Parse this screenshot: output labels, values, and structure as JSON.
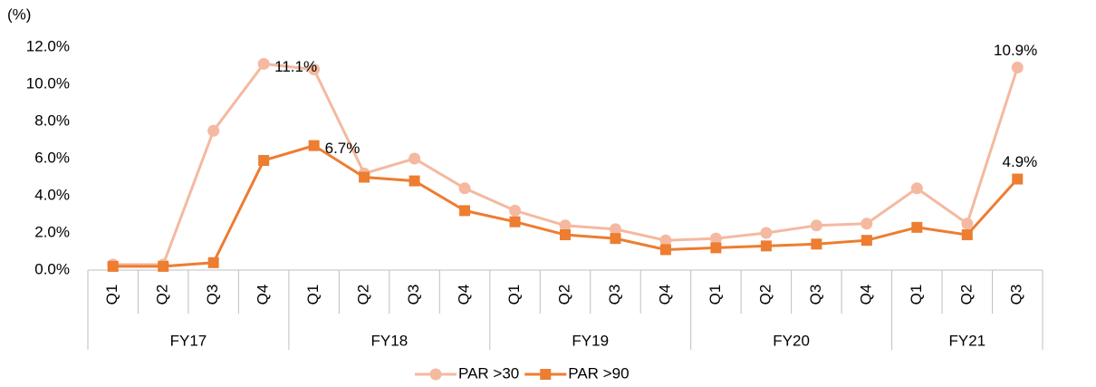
{
  "chart_data": {
    "type": "line",
    "y_label": "(%)",
    "category_groups": [
      {
        "name": "FY17",
        "categories": [
          "Q1",
          "Q2",
          "Q3",
          "Q4"
        ]
      },
      {
        "name": "FY18",
        "categories": [
          "Q1",
          "Q2",
          "Q3",
          "Q4"
        ]
      },
      {
        "name": "FY19",
        "categories": [
          "Q1",
          "Q2",
          "Q3",
          "Q4"
        ]
      },
      {
        "name": "FY20",
        "categories": [
          "Q1",
          "Q2",
          "Q3",
          "Q4"
        ]
      },
      {
        "name": "FY21",
        "categories": [
          "Q1",
          "Q2",
          "Q3"
        ]
      }
    ],
    "series": [
      {
        "name": "PAR >30",
        "color": "#f4b9a0",
        "marker": "circle",
        "values": [
          0.3,
          0.3,
          7.5,
          11.1,
          10.8,
          5.2,
          6.0,
          4.4,
          3.2,
          2.4,
          2.2,
          1.6,
          1.7,
          2.0,
          2.4,
          2.5,
          4.4,
          2.5,
          10.9
        ],
        "value_labels": [
          null,
          null,
          null,
          "11.1%",
          null,
          null,
          null,
          null,
          null,
          null,
          null,
          null,
          null,
          null,
          null,
          null,
          null,
          null,
          "10.9%"
        ]
      },
      {
        "name": "PAR >90",
        "color": "#ed7d31",
        "marker": "square",
        "values": [
          0.2,
          0.2,
          0.4,
          5.9,
          6.7,
          5.0,
          4.8,
          3.2,
          2.6,
          1.9,
          1.7,
          1.1,
          1.2,
          1.3,
          1.4,
          1.6,
          2.3,
          1.9,
          4.9
        ],
        "value_labels": [
          null,
          null,
          null,
          null,
          "6.7%",
          null,
          null,
          null,
          null,
          null,
          null,
          null,
          null,
          null,
          null,
          null,
          null,
          null,
          "4.9%"
        ]
      }
    ],
    "ylim": [
      0,
      12
    ],
    "yticks": [
      {
        "value": 0,
        "label": "0.0%"
      },
      {
        "value": 2,
        "label": "2.0%"
      },
      {
        "value": 4,
        "label": "4.0%"
      },
      {
        "value": 6,
        "label": "6.0%"
      },
      {
        "value": 8,
        "label": "8.0%"
      },
      {
        "value": 10,
        "label": "10.0%"
      },
      {
        "value": 12,
        "label": "12.0%"
      }
    ],
    "legend": "bottom"
  }
}
